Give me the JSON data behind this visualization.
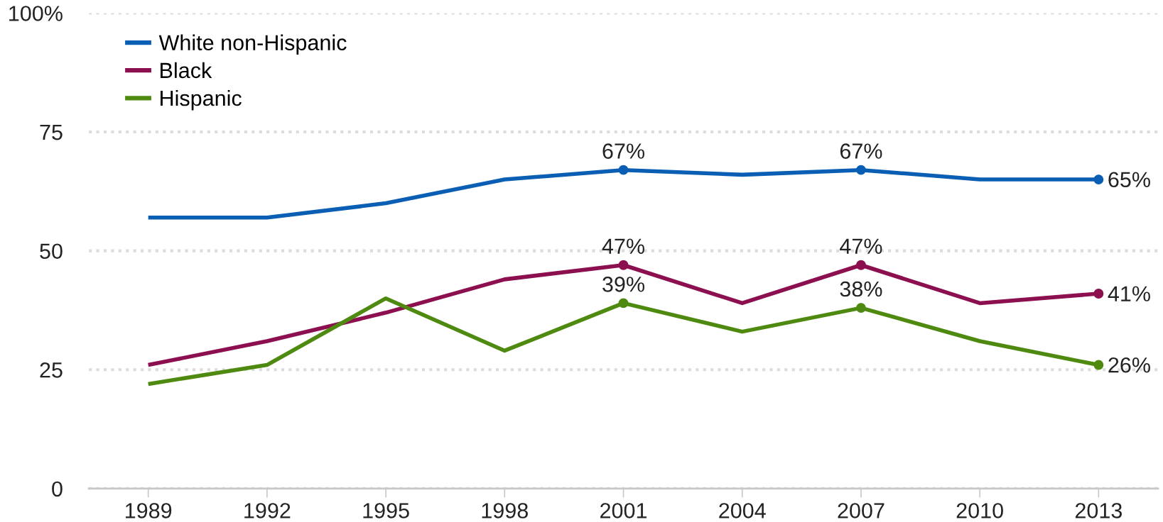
{
  "chart_data": {
    "type": "line",
    "categories": [
      "1989",
      "1992",
      "1995",
      "1998",
      "2001",
      "2004",
      "2007",
      "2010",
      "2013"
    ],
    "series": [
      {
        "name": "White non-Hispanic",
        "color": "#0a5fb4",
        "values": [
          57,
          57,
          60,
          65,
          67,
          66,
          67,
          65,
          65
        ],
        "value_labels": [
          null,
          null,
          null,
          null,
          "67%",
          null,
          "67%",
          null,
          "65%"
        ]
      },
      {
        "name": "Black",
        "color": "#8c0f4f",
        "values": [
          26,
          31,
          37,
          44,
          47,
          39,
          47,
          39,
          41
        ],
        "value_labels": [
          null,
          null,
          null,
          null,
          "47%",
          null,
          "47%",
          null,
          "41%"
        ]
      },
      {
        "name": "Hispanic",
        "color": "#4f8a10",
        "values": [
          22,
          26,
          40,
          29,
          39,
          33,
          38,
          31,
          26
        ],
        "value_labels": [
          null,
          null,
          null,
          null,
          "39%",
          null,
          "38%",
          null,
          "26%"
        ]
      }
    ],
    "ylim": [
      0,
      100
    ],
    "yticks": [
      0,
      25,
      50,
      75,
      {
        "value": 100,
        "label": "100%"
      }
    ],
    "grid": "y",
    "legend": "top left",
    "line_style": "solid"
  }
}
